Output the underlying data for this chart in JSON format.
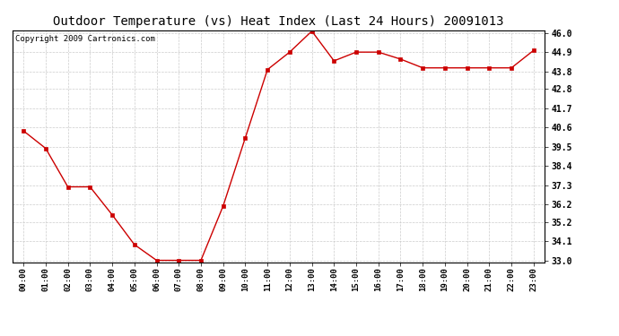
{
  "title": "Outdoor Temperature (vs) Heat Index (Last 24 Hours) 20091013",
  "copyright": "Copyright 2009 Cartronics.com",
  "x_labels": [
    "00:00",
    "01:00",
    "02:00",
    "03:00",
    "04:00",
    "05:00",
    "06:00",
    "07:00",
    "08:00",
    "09:00",
    "10:00",
    "11:00",
    "12:00",
    "13:00",
    "14:00",
    "15:00",
    "16:00",
    "17:00",
    "18:00",
    "19:00",
    "20:00",
    "21:00",
    "22:00",
    "23:00"
  ],
  "y_values": [
    40.4,
    39.4,
    37.2,
    37.2,
    35.6,
    33.9,
    33.0,
    33.0,
    33.0,
    36.1,
    40.0,
    43.9,
    44.9,
    46.1,
    44.4,
    44.9,
    44.9,
    44.5,
    44.0,
    44.0,
    44.0,
    44.0,
    44.0,
    45.0
  ],
  "line_color": "#cc0000",
  "marker_color": "#cc0000",
  "marker": "s",
  "marker_size": 3,
  "background_color": "#ffffff",
  "grid_color": "#cccccc",
  "title_fontsize": 10,
  "copyright_fontsize": 6.5,
  "y_min": 33.0,
  "y_max": 46.0,
  "y_ticks": [
    33.0,
    34.1,
    35.2,
    36.2,
    37.3,
    38.4,
    39.5,
    40.6,
    41.7,
    42.8,
    43.8,
    44.9,
    46.0
  ]
}
